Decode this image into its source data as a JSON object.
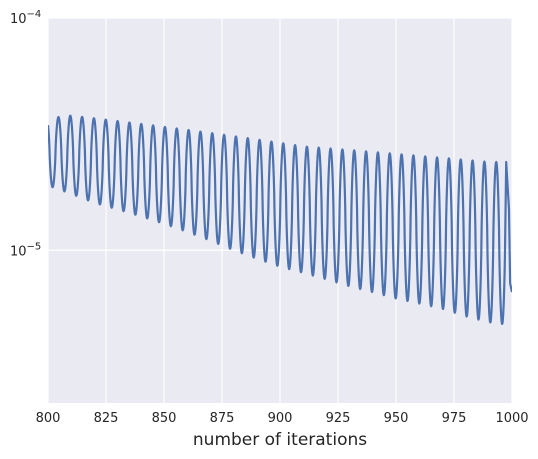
{
  "chart_data": {
    "type": "line",
    "title": "",
    "xlabel": "number of iterations",
    "ylabel": "",
    "xlim": [
      800,
      1000
    ],
    "ylim": [
      2.2e-06,
      0.0001
    ],
    "yscale": "log",
    "grid": true,
    "background": "#EAEAF2",
    "grid_color": "#FFFFFF",
    "series_color": "#4C72B0",
    "x_ticks": [
      "800",
      "825",
      "850",
      "875",
      "900",
      "925",
      "950",
      "975",
      "1000"
    ],
    "y_ticks": [
      {
        "value": 1e-05,
        "base": "10",
        "exp": "−5"
      },
      {
        "value": 0.0001,
        "base": "10",
        "exp": "−4"
      }
    ],
    "series": [
      {
        "period": 5.1,
        "phase": 1.6,
        "x": [
          800,
          810,
          820,
          830,
          840,
          850,
          860,
          870,
          880,
          890,
          900,
          910,
          920,
          930,
          940,
          950,
          960,
          970,
          980,
          990,
          997
        ],
        "upper": [
          3.7e-05,
          3.8e-05,
          3.7e-05,
          3.6e-05,
          3.5e-05,
          3.4e-05,
          3.3e-05,
          3.2e-05,
          3.1e-05,
          3e-05,
          2.9e-05,
          2.8e-05,
          2.75e-05,
          2.7e-05,
          2.65e-05,
          2.6e-05,
          2.55e-05,
          2.5e-05,
          2.45e-05,
          2.4e-05,
          2.4e-05
        ],
        "lower": [
          1.9e-05,
          1.75e-05,
          1.6e-05,
          1.5e-05,
          1.4e-05,
          1.3e-05,
          1.2e-05,
          1.1e-05,
          1e-05,
          9.2e-06,
          8.5e-06,
          8e-06,
          7.5e-06,
          7e-06,
          6.6e-06,
          6.2e-06,
          5.9e-06,
          5.6e-06,
          5.2e-06,
          4.9e-06,
          4.8e-06
        ],
        "end": [
          [
            997.5,
            2.4e-05
          ],
          [
            998.7,
            1.5e-05
          ],
          [
            999.2,
            7.2e-06
          ],
          [
            1000,
            6.6e-06
          ]
        ]
      }
    ]
  }
}
